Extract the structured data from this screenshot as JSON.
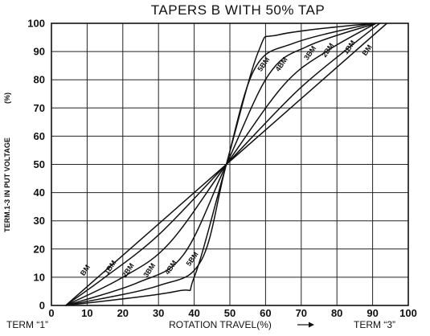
{
  "chart_data": {
    "type": "line",
    "title": "TAPERS B WITH 50% TAP",
    "xlabel": "ROTATION TRAVEL(%)",
    "ylabel": "TERM.1-3 IN PUT VOLTAGE",
    "ylabel_suffix": "(%)",
    "x_left_label": "TERM “1”",
    "x_right_label": "TERM “3”",
    "xlim": [
      0,
      100
    ],
    "ylim": [
      0,
      100
    ],
    "x_ticks": [
      0,
      10,
      20,
      30,
      40,
      50,
      60,
      70,
      80,
      90,
      100
    ],
    "y_ticks": [
      0,
      10,
      20,
      30,
      40,
      50,
      60,
      70,
      80,
      90,
      100
    ],
    "grid": true,
    "series": [
      {
        "name": "BM",
        "label_at": [
          10,
          12
        ],
        "label_upper_at": [
          89,
          90
        ],
        "points": [
          [
            4,
            0
          ],
          [
            49,
            50
          ],
          [
            94,
            100
          ]
        ]
      },
      {
        "name": "1BM",
        "label_at": [
          17,
          13
        ],
        "label_upper_at": [
          84,
          91
        ],
        "points": [
          [
            4,
            0
          ],
          [
            15,
            10
          ],
          [
            30,
            25
          ],
          [
            49,
            50
          ],
          [
            68,
            75
          ],
          [
            82,
            90
          ],
          [
            92,
            100
          ]
        ]
      },
      {
        "name": "2BM",
        "label_at": [
          22,
          12
        ],
        "label_upper_at": [
          78,
          90
        ],
        "points": [
          [
            4,
            0
          ],
          [
            20,
            10
          ],
          [
            33,
            22
          ],
          [
            49,
            50
          ],
          [
            65,
            78
          ],
          [
            77,
            90
          ],
          [
            91,
            100
          ]
        ]
      },
      {
        "name": "3BM",
        "label_at": [
          28,
          12
        ],
        "label_upper_at": [
          73,
          89
        ],
        "points": [
          [
            4,
            0
          ],
          [
            24,
            8
          ],
          [
            37,
            18
          ],
          [
            49,
            50
          ],
          [
            61,
            82
          ],
          [
            72,
            92
          ],
          [
            91,
            100
          ]
        ]
      },
      {
        "name": "4BM",
        "label_at": [
          34,
          13
        ],
        "label_upper_at": [
          65,
          85
        ],
        "points": [
          [
            4,
            0
          ],
          [
            30,
            7
          ],
          [
            42,
            16
          ],
          [
            49,
            50
          ],
          [
            57,
            84
          ],
          [
            68,
            93
          ],
          [
            90,
            100
          ]
        ]
      },
      {
        "name": "5BM",
        "label_at": [
          40,
          16
        ],
        "label_upper_at": [
          60,
          85
        ],
        "points": [
          [
            4,
            0
          ],
          [
            35,
            5
          ],
          [
            40,
            10
          ],
          [
            49,
            50
          ],
          [
            58,
            90
          ],
          [
            64,
            96
          ],
          [
            90,
            100
          ]
        ]
      }
    ]
  }
}
